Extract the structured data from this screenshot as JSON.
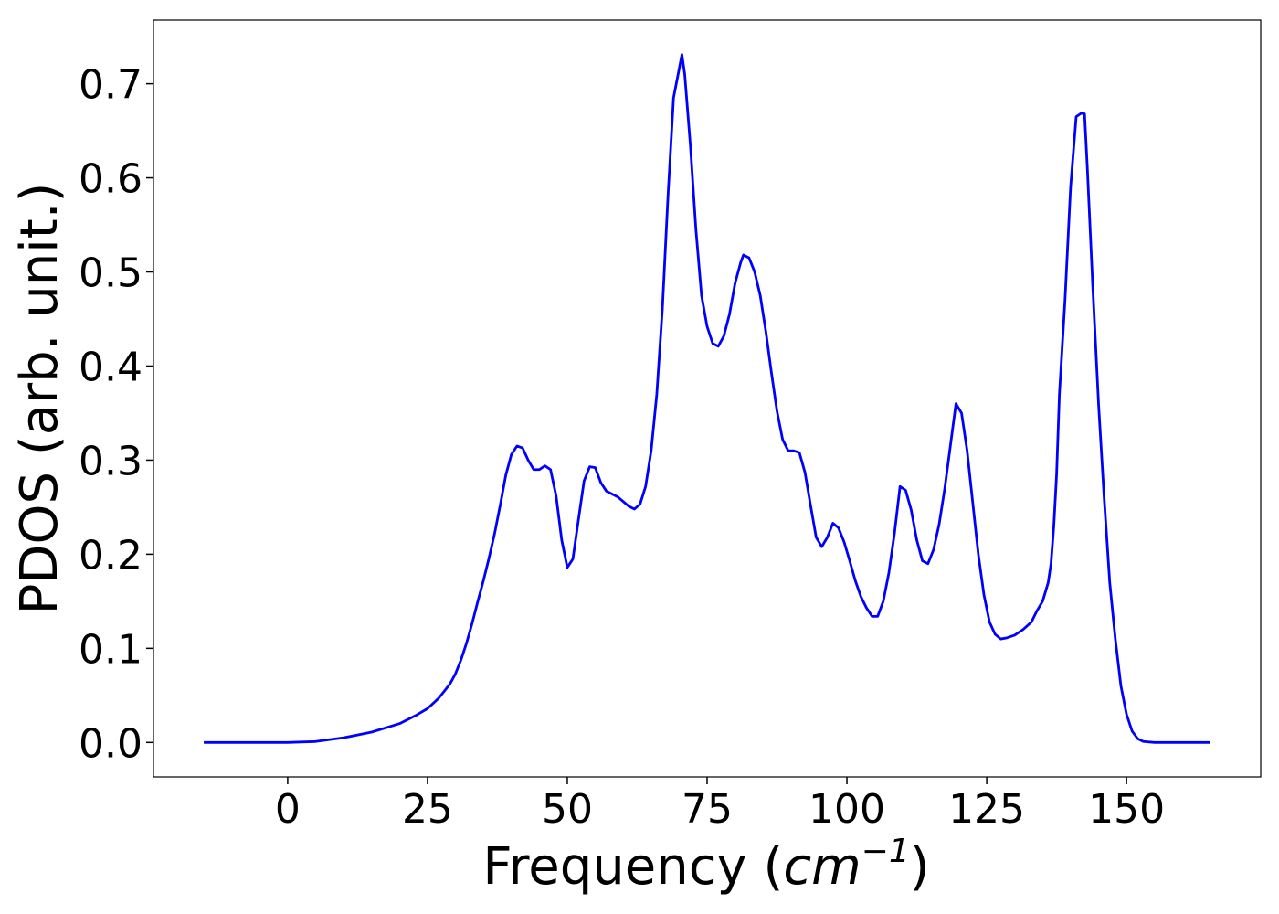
{
  "chart_data": {
    "type": "line",
    "xlabel": [
      "Frequency (",
      "cm",
      "−1",
      ")"
    ],
    "ylabel": "PDOS (arb. unit.)",
    "color": "#0000ff",
    "xlim": [
      -24,
      174
    ],
    "ylim": [
      -0.0366,
      0.7676
    ],
    "xticks": [
      0,
      25,
      50,
      75,
      100,
      125,
      150
    ],
    "yticks": [
      {
        "value": 0,
        "label": "0.0"
      },
      0.1,
      0.2,
      0.3,
      0.4,
      0.5,
      0.6,
      0.7
    ],
    "x": [
      -15,
      -10,
      -5,
      0,
      5,
      10,
      15,
      20,
      23,
      25,
      27,
      29,
      30,
      31,
      32,
      33,
      34,
      35,
      36,
      37,
      38,
      39,
      40,
      41,
      42,
      43,
      44,
      45,
      46,
      47,
      48,
      49,
      50,
      51,
      52,
      53,
      54,
      55,
      56,
      57,
      58,
      59,
      60,
      61,
      62,
      63,
      64,
      65,
      66,
      67,
      68,
      69,
      70.5,
      71,
      72,
      73,
      74,
      75,
      76,
      77,
      78,
      79,
      80,
      81,
      81.5,
      82.5,
      83.5,
      84.5,
      85.5,
      86.5,
      87.5,
      88.5,
      89.5,
      90.5,
      91.5,
      92.5,
      93.5,
      94.5,
      95.5,
      96.5,
      97.5,
      98.5,
      99.5,
      100.5,
      101.5,
      102.5,
      103.5,
      104.5,
      105.5,
      106.5,
      107.5,
      108.5,
      109.5,
      110.5,
      111.5,
      112.5,
      113.5,
      114.5,
      115.5,
      116.5,
      117.5,
      118.5,
      119.5,
      120.5,
      121.5,
      122.5,
      123.5,
      124.5,
      125.5,
      126.5,
      127.5,
      128.5,
      130,
      131.5,
      133,
      134,
      135,
      136,
      136.5,
      137,
      137.5,
      138,
      139,
      140,
      141,
      142,
      142.5,
      143,
      144,
      145,
      146,
      147,
      148,
      149,
      150,
      151,
      152,
      153,
      155,
      160,
      165
    ],
    "values": [
      0,
      0,
      0,
      0,
      0.001,
      0.005,
      0.011,
      0.02,
      0.029,
      0.036,
      0.047,
      0.062,
      0.073,
      0.088,
      0.106,
      0.127,
      0.15,
      0.172,
      0.196,
      0.222,
      0.252,
      0.284,
      0.306,
      0.315,
      0.313,
      0.3,
      0.29,
      0.29,
      0.294,
      0.29,
      0.262,
      0.215,
      0.186,
      0.195,
      0.237,
      0.278,
      0.293,
      0.292,
      0.276,
      0.267,
      0.264,
      0.261,
      0.256,
      0.251,
      0.248,
      0.253,
      0.272,
      0.31,
      0.37,
      0.46,
      0.58,
      0.685,
      0.731,
      0.71,
      0.635,
      0.545,
      0.475,
      0.442,
      0.424,
      0.421,
      0.432,
      0.455,
      0.488,
      0.51,
      0.518,
      0.515,
      0.5,
      0.475,
      0.437,
      0.393,
      0.352,
      0.322,
      0.31,
      0.31,
      0.308,
      0.287,
      0.252,
      0.218,
      0.208,
      0.218,
      0.233,
      0.228,
      0.213,
      0.193,
      0.172,
      0.155,
      0.143,
      0.134,
      0.134,
      0.15,
      0.18,
      0.222,
      0.272,
      0.268,
      0.247,
      0.215,
      0.193,
      0.19,
      0.205,
      0.232,
      0.27,
      0.315,
      0.36,
      0.35,
      0.31,
      0.255,
      0.2,
      0.157,
      0.128,
      0.115,
      0.11,
      0.111,
      0.114,
      0.12,
      0.128,
      0.14,
      0.15,
      0.17,
      0.19,
      0.23,
      0.285,
      0.37,
      0.47,
      0.59,
      0.665,
      0.669,
      0.668,
      0.61,
      0.48,
      0.36,
      0.26,
      0.17,
      0.11,
      0.06,
      0.03,
      0.012,
      0.004,
      0.001,
      0,
      0,
      0
    ]
  }
}
